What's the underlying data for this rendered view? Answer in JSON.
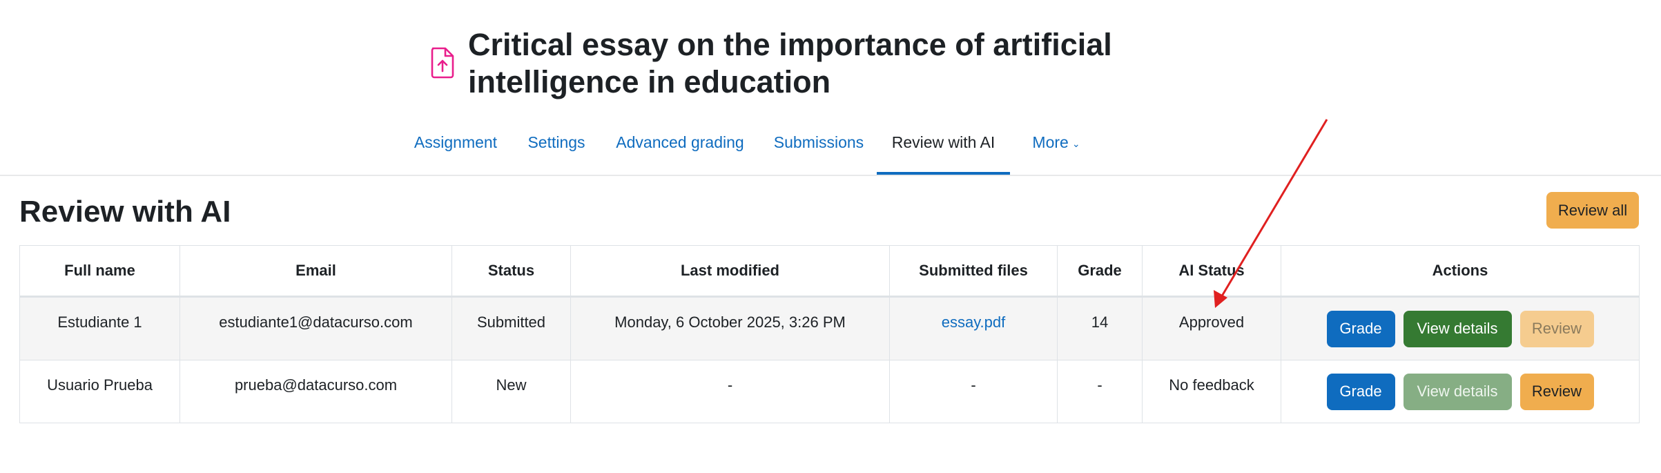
{
  "page": {
    "title": "Critical essay on the importance of artificial intelligence in education",
    "title_icon": "file-upload-icon",
    "icon_color": "#e91e8c"
  },
  "tabs": [
    {
      "label": "Assignment",
      "active": false
    },
    {
      "label": "Settings",
      "active": false
    },
    {
      "label": "Advanced grading",
      "active": false
    },
    {
      "label": "Submissions",
      "active": false
    },
    {
      "label": "Review with AI",
      "active": true
    },
    {
      "label": "More",
      "active": false,
      "icon": "chevron-down-icon"
    }
  ],
  "section": {
    "heading": "Review with AI",
    "review_all_label": "Review all"
  },
  "table": {
    "headers": [
      "Full name",
      "Email",
      "Status",
      "Last modified",
      "Submitted files",
      "Grade",
      "AI Status",
      "Actions"
    ],
    "rows": [
      {
        "full_name": "Estudiante 1",
        "email": "estudiante1@datacurso.com",
        "status": "Submitted",
        "last_modified": "Monday, 6 October 2025, 3:26 PM",
        "submitted_files": "essay.pdf",
        "grade": "14",
        "ai_status": "Approved",
        "actions": {
          "grade": "Grade",
          "view_details": "View details",
          "review": "Review",
          "view_details_enabled": true,
          "review_enabled": false
        }
      },
      {
        "full_name": "Usuario Prueba",
        "email": "prueba@datacurso.com",
        "status": "New",
        "last_modified": "-",
        "submitted_files": "-",
        "grade": "-",
        "ai_status": "No feedback",
        "actions": {
          "grade": "Grade",
          "view_details": "View details",
          "review": "Review",
          "view_details_enabled": false,
          "review_enabled": true
        }
      }
    ]
  },
  "colors": {
    "link": "#0f6cbf",
    "primary": "#0f6cbf",
    "success": "#357a32",
    "warning": "#f0ad4e",
    "annotation_arrow": "#e02020"
  }
}
